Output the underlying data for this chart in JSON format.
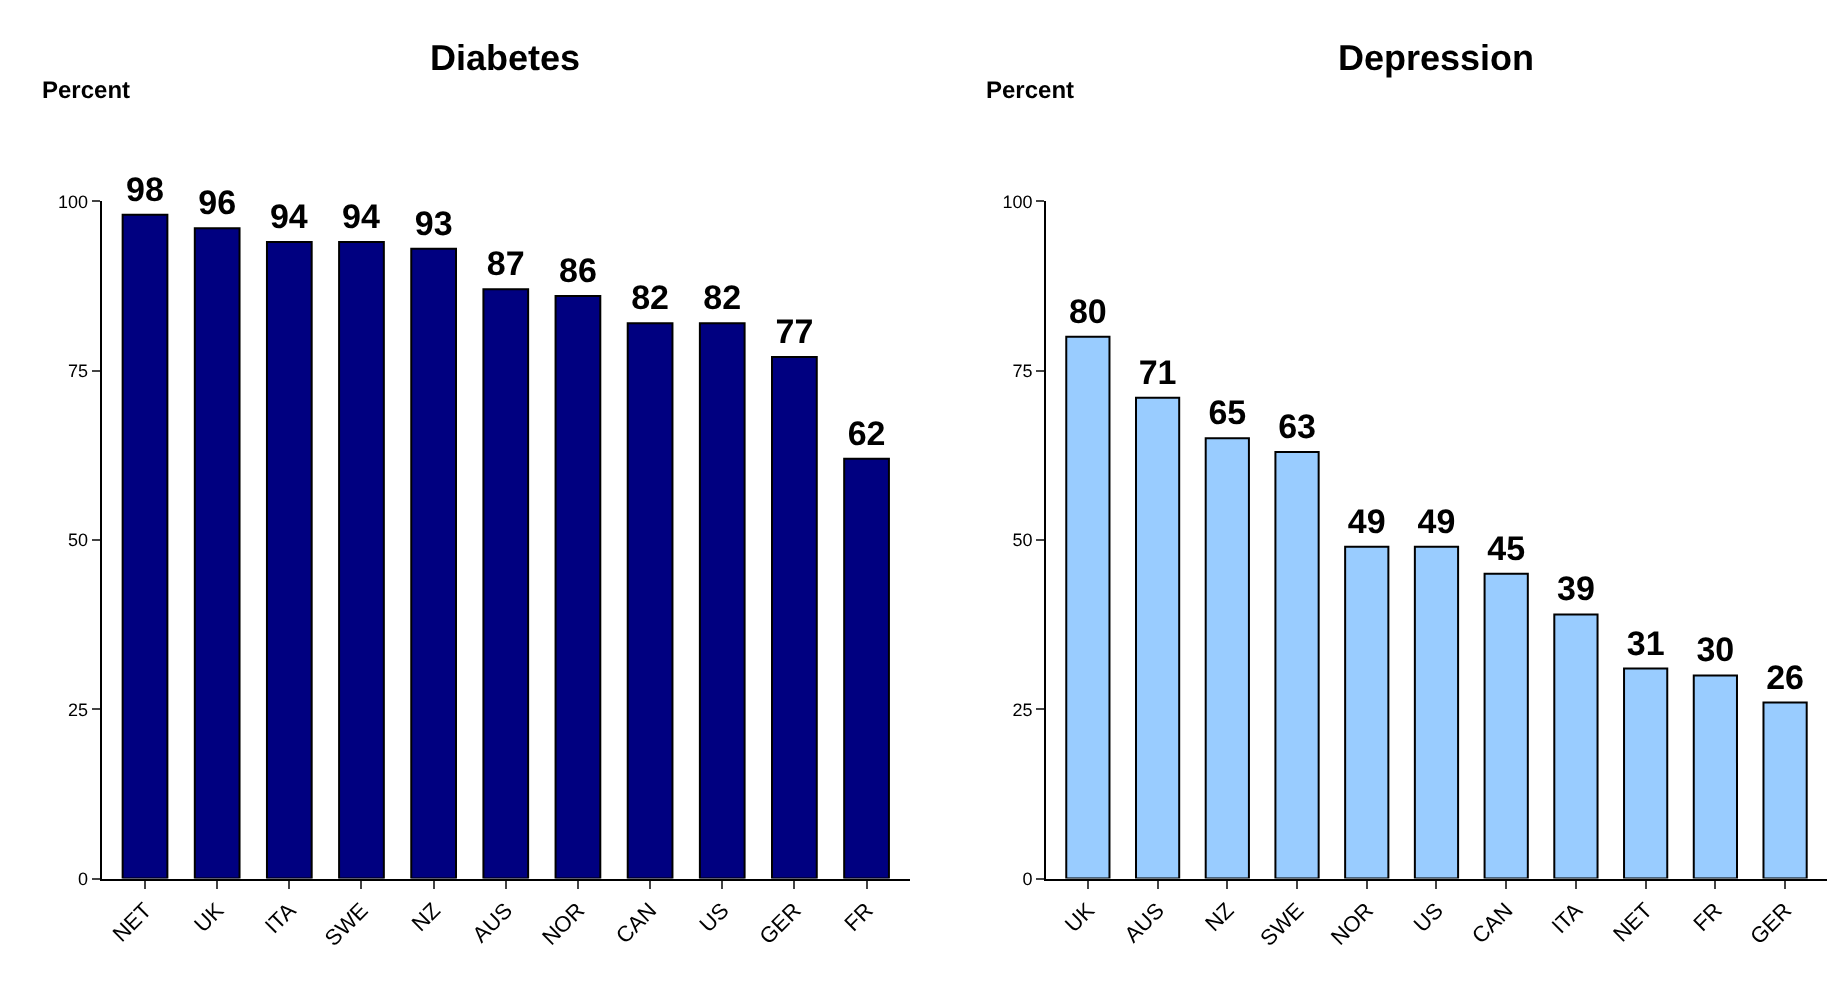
{
  "chart_data": [
    {
      "type": "bar",
      "title": "Diabetes",
      "ylabel": "Percent",
      "categories": [
        "NET",
        "UK",
        "ITA",
        "SWE",
        "NZ",
        "AUS",
        "NOR",
        "CAN",
        "US",
        "GER",
        "FR"
      ],
      "values": [
        98,
        96,
        94,
        94,
        93,
        87,
        86,
        82,
        82,
        77,
        62
      ],
      "color": "#000080",
      "ylim": [
        0,
        100
      ],
      "yticks": [
        0,
        25,
        50,
        75,
        100
      ],
      "data_labels": true,
      "legend": false
    },
    {
      "type": "bar",
      "title": "Depression",
      "ylabel": "Percent",
      "categories": [
        "UK",
        "AUS",
        "NZ",
        "SWE",
        "NOR",
        "US",
        "CAN",
        "ITA",
        "NET",
        "FR",
        "GER"
      ],
      "values": [
        80,
        71,
        65,
        63,
        49,
        49,
        45,
        39,
        31,
        30,
        26
      ],
      "color": "#99ccff",
      "ylim": [
        0,
        100
      ],
      "yticks": [
        0,
        25,
        50,
        75,
        100
      ],
      "data_labels": true,
      "legend": false
    }
  ]
}
